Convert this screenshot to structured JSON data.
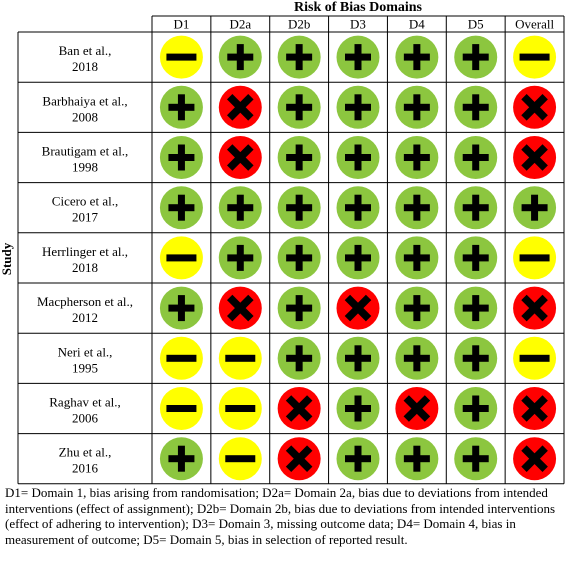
{
  "chart_data": {
    "type": "table",
    "title": "Risk of Bias Domains",
    "ylabel": "Study",
    "columns": [
      "D1",
      "D2a",
      "D2b",
      "D3",
      "D4",
      "D5",
      "Overall"
    ],
    "studies": [
      {
        "name": "Ban et al., 2018",
        "line1": "Ban et al.,",
        "line2": "2018",
        "judgements": [
          "some-concerns",
          "low",
          "low",
          "low",
          "low",
          "low",
          "some-concerns"
        ]
      },
      {
        "name": "Barbhaiya et al., 2008",
        "line1": "Barbhaiya et al.,",
        "line2": "2008",
        "judgements": [
          "low",
          "high",
          "low",
          "low",
          "low",
          "low",
          "high"
        ]
      },
      {
        "name": "Brautigam et al., 1998",
        "line1": "Brautigam et al.,",
        "line2": "1998",
        "judgements": [
          "low",
          "high",
          "low",
          "low",
          "low",
          "low",
          "high"
        ]
      },
      {
        "name": "Cicero et al., 2017",
        "line1": "Cicero et al.,",
        "line2": "2017",
        "judgements": [
          "low",
          "low",
          "low",
          "low",
          "low",
          "low",
          "low"
        ]
      },
      {
        "name": "Herrlinger et al., 2018",
        "line1": "Herrlinger et al.,",
        "line2": "2018",
        "judgements": [
          "some-concerns",
          "low",
          "low",
          "low",
          "low",
          "low",
          "some-concerns"
        ]
      },
      {
        "name": "Macpherson et al., 2012",
        "line1": "Macpherson et al.,",
        "line2": "2012",
        "judgements": [
          "low",
          "high",
          "low",
          "high",
          "low",
          "low",
          "high"
        ]
      },
      {
        "name": "Neri et al., 1995",
        "line1": "Neri et al.,",
        "line2": "1995",
        "judgements": [
          "some-concerns",
          "some-concerns",
          "low",
          "low",
          "low",
          "low",
          "some-concerns"
        ]
      },
      {
        "name": "Raghav et al., 2006",
        "line1": "Raghav et al.,",
        "line2": "2006",
        "judgements": [
          "some-concerns",
          "some-concerns",
          "high",
          "low",
          "high",
          "low",
          "high"
        ]
      },
      {
        "name": "Zhu et al., 2016",
        "line1": "Zhu et al.,",
        "line2": "2016",
        "judgements": [
          "low",
          "some-concerns",
          "high",
          "low",
          "low",
          "low",
          "high"
        ]
      }
    ],
    "legend_text": "D1= Domain 1, bias arising from randomisation; D2a= Domain 2a, bias due to deviations from intended interventions (effect of assignment); D2b= Domain 2b, bias due to deviations from intended interventions (effect of adhering to intervention); D3= Domain 3, missing outcome data; D4= Domain 4, bias in measurement of outcome; D5= Domain 5, bias in selection of reported result."
  },
  "colors": {
    "low": "#8cc63f",
    "some-concerns": "#ffff00",
    "high": "#ff0000",
    "symbol": "#000000",
    "grid": "#000000"
  },
  "icons": {
    "low": "plus-icon",
    "some-concerns": "minus-icon",
    "high": "cross-icon"
  }
}
